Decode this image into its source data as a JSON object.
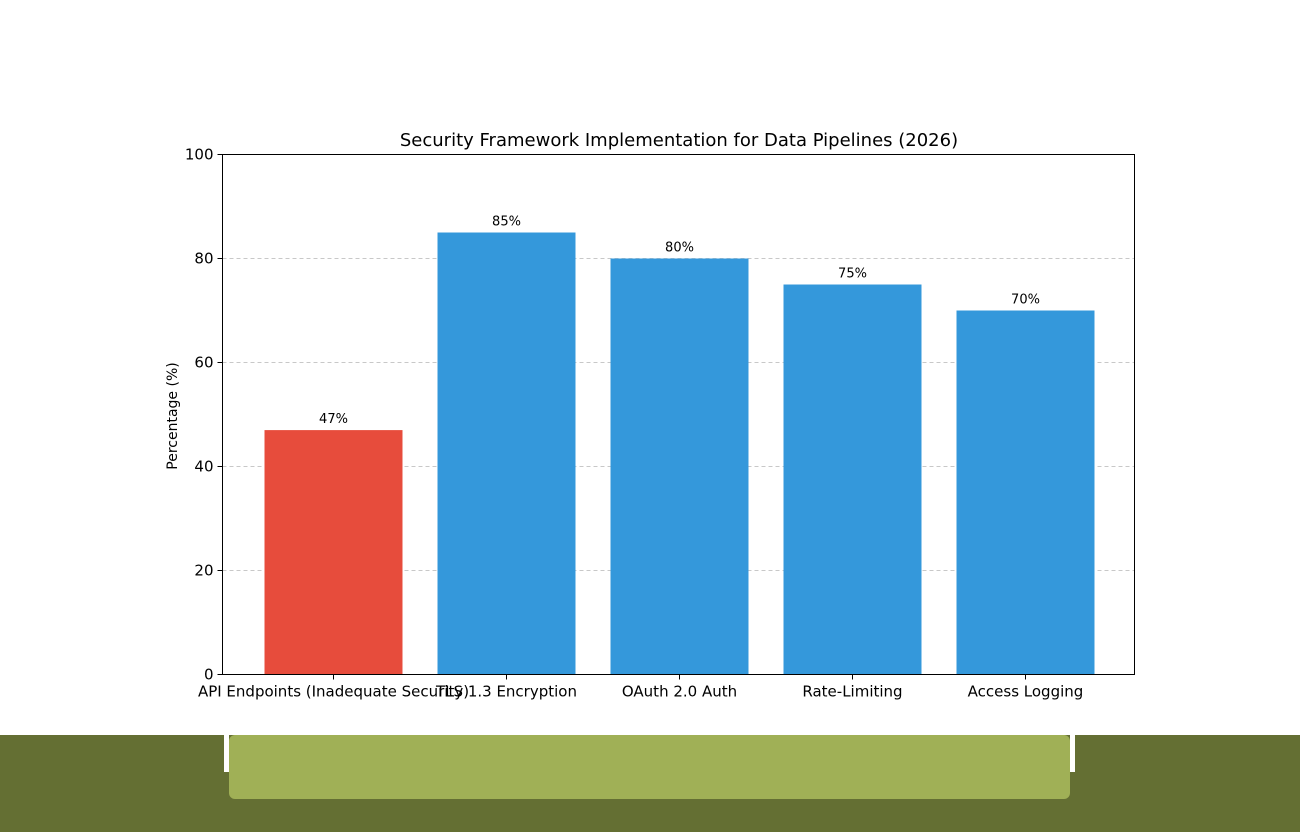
{
  "colors": {
    "highlight_bar": "#e74c3c",
    "normal_bar": "#3498db",
    "grid": "#c8c8c8",
    "footer_dark": "#646f33",
    "footer_light": "#a0b056"
  },
  "chart_data": {
    "type": "bar",
    "title": "Security Framework Implementation for Data Pipelines (2026)",
    "xlabel": "",
    "ylabel": "Percentage (%)",
    "ylim": [
      0,
      100
    ],
    "yticks": [
      0,
      20,
      40,
      60,
      80,
      100
    ],
    "grid": "y-dashed",
    "categories": [
      "API Endpoints (Inadequate Security)",
      "TLS 1.3 Encryption",
      "OAuth 2.0 Auth",
      "Rate-Limiting",
      "Access Logging"
    ],
    "values": [
      47,
      85,
      80,
      75,
      70
    ],
    "data_labels": [
      "47%",
      "85%",
      "80%",
      "75%",
      "70%"
    ],
    "bar_colors": [
      "#e74c3c",
      "#3498db",
      "#3498db",
      "#3498db",
      "#3498db"
    ]
  }
}
